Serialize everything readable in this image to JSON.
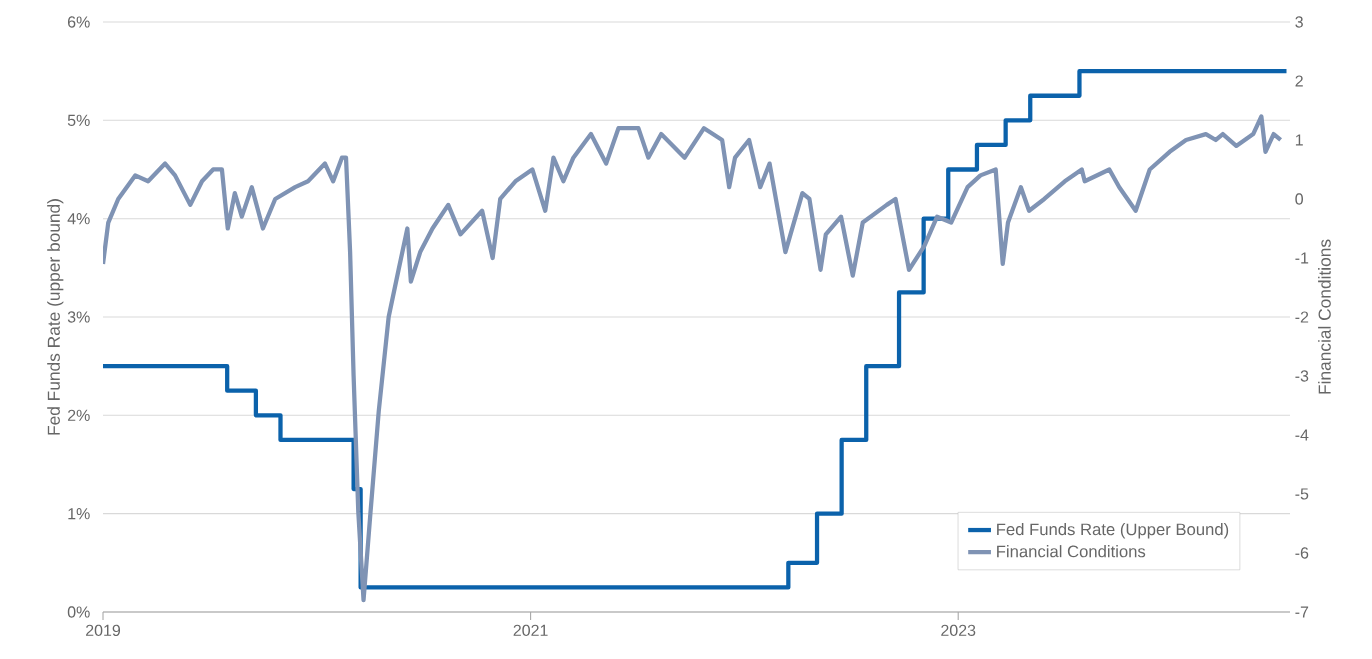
{
  "chart_data": {
    "type": "line",
    "ylabel": "Fed Funds Rate (upper bound)",
    "y2label": "Financial Conditions",
    "xlim": [
      "2019-01-01",
      "2024-07-21"
    ],
    "xticks": [
      "2019",
      "2021",
      "2023"
    ],
    "ylim": [
      0,
      6
    ],
    "yticks": [
      {
        "value": 0,
        "label": "0%"
      },
      {
        "value": 1,
        "label": "1%"
      },
      {
        "value": 2,
        "label": "2%"
      },
      {
        "value": 3,
        "label": "3%"
      },
      {
        "value": 4,
        "label": "4%"
      },
      {
        "value": 5,
        "label": "5%"
      },
      {
        "value": 6,
        "label": "6%"
      }
    ],
    "y2lim": [
      -7,
      3
    ],
    "y2ticks": [
      -7,
      -6,
      -5,
      -4,
      -3,
      -2,
      -1,
      0,
      1,
      2,
      3
    ],
    "grid": "y",
    "legend": "bottom right",
    "series": [
      {
        "name": "Fed Funds Rate (Upper Bound)",
        "type": "step",
        "color": "#0b62ab",
        "x": [
          "2019-01-01",
          "2019-08-01",
          "2019-09-19",
          "2019-10-31",
          "2020-03-04",
          "2020-03-16",
          "2022-03-17",
          "2022-05-05",
          "2022-06-16",
          "2022-07-28",
          "2022-09-22",
          "2022-11-03",
          "2022-12-15",
          "2023-02-02",
          "2023-03-23",
          "2023-05-04",
          "2023-07-27",
          "2024-07-15"
        ],
        "values": [
          2.5,
          2.25,
          2.0,
          1.75,
          1.25,
          0.25,
          0.5,
          1.0,
          1.75,
          2.5,
          3.25,
          4.0,
          4.5,
          4.75,
          5.0,
          5.25,
          5.5,
          5.5
        ]
      },
      {
        "name": "Financial Conditions",
        "type": "line",
        "axis": "y2",
        "color": "#7f93b4",
        "x": [
          "2019-01-01",
          "2019-01-10",
          "2019-01-27",
          "2019-02-25",
          "2019-03-19",
          "2019-04-17",
          "2019-05-04",
          "2019-05-30",
          "2019-06-19",
          "2019-07-08",
          "2019-07-23",
          "2019-08-02",
          "2019-08-14",
          "2019-08-26",
          "2019-09-12",
          "2019-10-01",
          "2019-10-22",
          "2019-11-25",
          "2019-12-17",
          "2020-01-15",
          "2020-01-29",
          "2020-02-13",
          "2020-02-20",
          "2020-02-27",
          "2020-03-04",
          "2020-03-12",
          "2020-03-21",
          "2020-04-02",
          "2020-04-16",
          "2020-05-03",
          "2020-05-20",
          "2020-06-04",
          "2020-06-10",
          "2020-06-26",
          "2020-07-17",
          "2020-08-13",
          "2020-09-03",
          "2020-10-10",
          "2020-10-28",
          "2020-11-10",
          "2020-12-06",
          "2021-01-04",
          "2021-01-26",
          "2021-02-09",
          "2021-02-26",
          "2021-03-15",
          "2021-04-14",
          "2021-05-10",
          "2021-05-31",
          "2021-07-04",
          "2021-07-21",
          "2021-08-12",
          "2021-09-21",
          "2021-10-24",
          "2021-11-24",
          "2021-12-06",
          "2021-12-16",
          "2022-01-09",
          "2022-01-28",
          "2022-02-13",
          "2022-03-12",
          "2022-04-10",
          "2022-04-22",
          "2022-05-11",
          "2022-05-20",
          "2022-06-15",
          "2022-07-05",
          "2022-07-22",
          "2022-09-01",
          "2022-09-16",
          "2022-10-09",
          "2022-11-04",
          "2022-11-26",
          "2022-12-20",
          "2023-01-17",
          "2023-02-08",
          "2023-03-06",
          "2023-03-18",
          "2023-03-27",
          "2023-04-18",
          "2023-05-02",
          "2023-05-28",
          "2023-07-02",
          "2023-07-31",
          "2023-08-05",
          "2023-09-16",
          "2023-10-03",
          "2023-10-31",
          "2023-11-24",
          "2023-12-28",
          "2024-01-25",
          "2024-02-28",
          "2024-03-16",
          "2024-03-28",
          "2024-04-20",
          "2024-05-19",
          "2024-06-02",
          "2024-06-09",
          "2024-06-23",
          "2024-07-05"
        ],
        "values": [
          -1.1,
          -0.4,
          0.0,
          0.4,
          0.3,
          0.6,
          0.4,
          -0.1,
          0.3,
          0.5,
          0.5,
          -0.5,
          0.1,
          -0.3,
          0.2,
          -0.5,
          0.0,
          0.2,
          0.3,
          0.6,
          0.3,
          0.7,
          0.7,
          -0.9,
          -3.0,
          -5.3,
          -6.8,
          -5.3,
          -3.6,
          -2.0,
          -1.2,
          -0.5,
          -1.4,
          -0.9,
          -0.5,
          -0.1,
          -0.6,
          -0.2,
          -1.0,
          0.0,
          0.3,
          0.5,
          -0.2,
          0.7,
          0.3,
          0.7,
          1.1,
          0.6,
          1.2,
          1.2,
          0.7,
          1.1,
          0.7,
          1.2,
          1.0,
          0.2,
          0.7,
          1.0,
          0.2,
          0.6,
          -0.9,
          0.1,
          0.0,
          -1.2,
          -0.6,
          -0.3,
          -1.3,
          -0.4,
          -0.1,
          0.0,
          -1.2,
          -0.8,
          -0.3,
          -0.4,
          0.2,
          0.4,
          0.5,
          -1.1,
          -0.4,
          0.2,
          -0.2,
          0.0,
          0.3,
          0.5,
          0.3,
          0.5,
          0.2,
          -0.2,
          0.5,
          0.8,
          1.0,
          1.1,
          1.0,
          1.1,
          0.9,
          1.1,
          1.4,
          0.8,
          1.1,
          1.0
        ]
      }
    ]
  }
}
